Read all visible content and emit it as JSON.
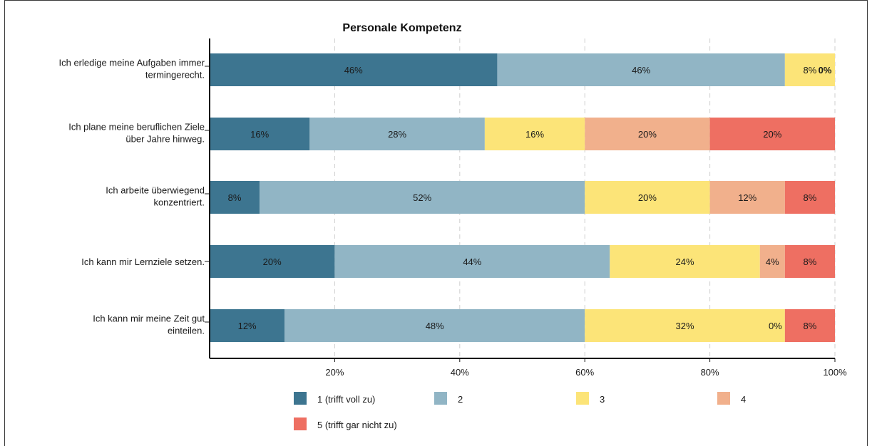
{
  "chart_data": {
    "type": "bar",
    "orientation": "horizontal",
    "stacked": true,
    "title": "Personale Kompetenz",
    "categories": [
      [
        "Ich erledige meine Aufgaben immer",
        "termingerecht."
      ],
      [
        "Ich plane meine beruflichen Ziele",
        "über Jahre hinweg."
      ],
      [
        "Ich arbeite überwiegend",
        "konzentriert."
      ],
      [
        "Ich kann mir Lernziele setzen."
      ],
      [
        "Ich kann mir meine Zeit gut",
        "einteilen."
      ]
    ],
    "series": [
      {
        "name": "1 (trifft voll zu)",
        "color": "#3d7590",
        "values": [
          46,
          16,
          8,
          20,
          12
        ]
      },
      {
        "name": "2",
        "color": "#91b5c5",
        "values": [
          46,
          28,
          52,
          44,
          48
        ]
      },
      {
        "name": "3",
        "color": "#fce478",
        "values": [
          8,
          16,
          20,
          24,
          32
        ]
      },
      {
        "name": "4",
        "color": "#f1b08c",
        "values": [
          0,
          20,
          12,
          4,
          0
        ]
      },
      {
        "name": "5 (trifft gar nicht zu)",
        "color": "#ee6f62",
        "values": [
          0,
          20,
          8,
          8,
          8
        ]
      }
    ],
    "data_labels": [
      [
        "46%",
        "46%",
        "8%",
        "0%",
        ""
      ],
      [
        "16%",
        "28%",
        "16%",
        "20%",
        "20%"
      ],
      [
        "8%",
        "52%",
        "20%",
        "12%",
        "8%"
      ],
      [
        "20%",
        "44%",
        "24%",
        "4%",
        "8%"
      ],
      [
        "12%",
        "48%",
        "32%",
        "0%",
        "8%"
      ]
    ],
    "x_ticks": [
      "20%",
      "40%",
      "60%",
      "80%",
      "100%"
    ],
    "x_tick_values": [
      20,
      40,
      60,
      80,
      100
    ],
    "xlim": [
      0,
      100
    ],
    "xlabel": "",
    "ylabel": "",
    "grid": "vertical dashed",
    "legend_position": "bottom"
  }
}
